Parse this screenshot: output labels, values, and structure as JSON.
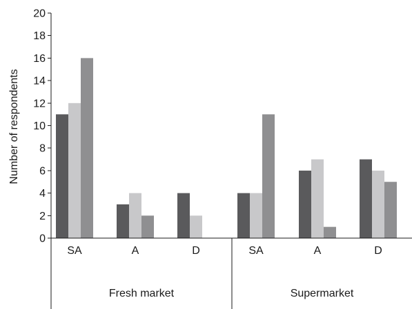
{
  "chart_data": {
    "type": "bar",
    "ylabel": "Number of respondents",
    "xlabel": "",
    "ylim": [
      0,
      20
    ],
    "yticks": [
      0,
      2,
      4,
      6,
      8,
      10,
      12,
      14,
      16,
      18,
      20
    ],
    "grid": false,
    "legend": "none",
    "groups": [
      {
        "label": "Fresh market",
        "categories": [
          "SA",
          "A",
          "D"
        ]
      },
      {
        "label": "Supermarket",
        "categories": [
          "SA",
          "A",
          "D"
        ]
      }
    ],
    "categories": [
      "SA",
      "A",
      "D",
      "SA",
      "A",
      "D"
    ],
    "series": [
      {
        "values": [
          11,
          3,
          4,
          4,
          6,
          7
        ],
        "color": "#5a5a5c"
      },
      {
        "values": [
          12,
          4,
          2,
          4,
          7,
          6
        ],
        "color": "#c8c8ca"
      },
      {
        "values": [
          16,
          2,
          0,
          11,
          1,
          5
        ],
        "color": "#8f8f91"
      }
    ]
  }
}
